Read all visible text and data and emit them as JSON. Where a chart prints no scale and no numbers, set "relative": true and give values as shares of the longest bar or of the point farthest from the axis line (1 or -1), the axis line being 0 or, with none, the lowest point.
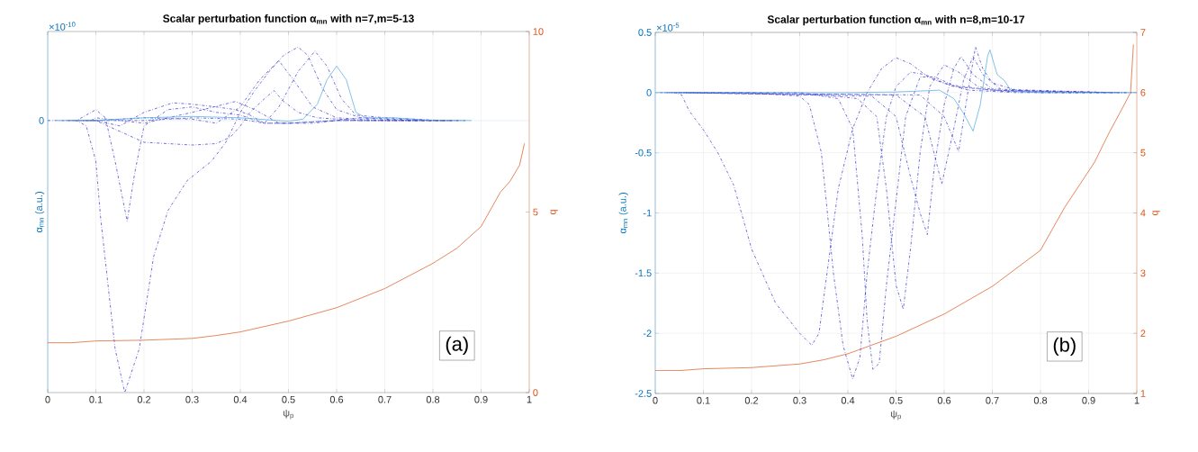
{
  "chart_data": [
    {
      "type": "line",
      "title": "Scalar perturbation function α$_{mn}$ with n=7,m=5-13",
      "xlabel": "ψ$_{p}$",
      "ylabel": "α$_{mn}$ (a.u.)",
      "relative": true,
      "grid": "x",
      "xlim": [
        0,
        1
      ],
      "xticks": [
        0,
        0.1,
        0.2,
        0.3,
        0.4,
        0.5,
        0.6,
        0.7,
        0.8,
        0.9,
        1
      ],
      "ref_lines": [
        {
          "axis": "y",
          "value": 0,
          "label": "0",
          "color": "#bfe0ef"
        }
      ],
      "annotations": [
        "×10$^{-10}$",
        "(a)"
      ],
      "series": [
        {
          "color": "#3333cc",
          "line_style": "dashdot",
          "x": [
            0,
            0.06,
            0.08,
            0.1,
            0.11,
            0.14,
            0.16,
            0.19,
            0.22,
            0.25,
            0.29,
            0.34,
            0.37,
            0.4,
            0.43,
            0.46,
            0.49,
            0.52,
            0.54,
            0.57,
            0.6,
            0.65,
            0.75,
            0.87
          ],
          "values": [
            0,
            0,
            -0.02,
            -0.15,
            -0.36,
            -0.84,
            -1,
            -0.84,
            -0.5,
            -0.33,
            -0.22,
            -0.15,
            -0.08,
            0.03,
            0.11,
            0.18,
            0.24,
            0.27,
            0.24,
            0.12,
            0.04,
            0.01,
            0,
            0
          ]
        },
        {
          "color": "#3333cc",
          "line_style": "dashdot",
          "x": [
            0.04,
            0.06,
            0.08,
            0.1,
            0.12,
            0.14,
            0.165,
            0.18,
            0.2,
            0.25,
            0.3,
            0.35,
            0.4,
            0.45,
            0.5,
            0.6,
            0.86
          ],
          "values": [
            0,
            0,
            0.02,
            0.04,
            0.01,
            -0.15,
            -0.37,
            -0.2,
            -0.02,
            0.04,
            0.05,
            0.03,
            0.02,
            -0.01,
            -0.01,
            0,
            0
          ]
        },
        {
          "color": "#3333cc",
          "line_style": "dashdot",
          "x": [
            0.05,
            0.1,
            0.15,
            0.2,
            0.3,
            0.35,
            0.38,
            0.4,
            0.42,
            0.45,
            0.47,
            0.49,
            0.52,
            0.56,
            0.65,
            0.85
          ],
          "values": [
            0,
            0,
            -0.04,
            -0.08,
            -0.09,
            -0.085,
            -0.06,
            -0.02,
            0.03,
            0.08,
            0.11,
            0.07,
            0.03,
            0.01,
            0,
            0
          ]
        },
        {
          "color": "#3333cc",
          "line_style": "dashdot",
          "x": [
            0.06,
            0.1,
            0.15,
            0.2,
            0.26,
            0.3,
            0.35,
            0.39,
            0.42,
            0.45,
            0.5,
            0.6,
            0.84
          ],
          "values": [
            0,
            0,
            -0.02,
            0.03,
            0.065,
            0.06,
            0.05,
            0.04,
            0.02,
            -0.01,
            -0.01,
            0,
            0
          ]
        },
        {
          "color": "#3333cc",
          "line_style": "dashdot",
          "x": [
            0.07,
            0.1,
            0.2,
            0.3,
            0.35,
            0.4,
            0.44,
            0.48,
            0.51,
            0.55,
            0.6,
            0.7,
            0.83
          ],
          "values": [
            0,
            0,
            0.01,
            0.005,
            -0.01,
            0.05,
            0.15,
            0.22,
            0.15,
            0.05,
            0.01,
            0,
            0
          ]
        },
        {
          "color": "#3333cc",
          "line_style": "dashdot",
          "x": [
            0.08,
            0.1,
            0.2,
            0.3,
            0.4,
            0.45,
            0.48,
            0.52,
            0.555,
            0.58,
            0.61,
            0.64,
            0.7,
            0.82
          ],
          "values": [
            0,
            0,
            0,
            0.01,
            0.005,
            -0.01,
            0.05,
            0.18,
            0.255,
            0.2,
            0.08,
            0.02,
            0.01,
            0
          ]
        },
        {
          "color": "#3333cc",
          "line_style": "dashdot",
          "x": [
            0.09,
            0.1,
            0.2,
            0.3,
            0.39,
            0.43,
            0.48,
            0.55,
            0.65,
            0.8
          ],
          "values": [
            0,
            0.01,
            -0.01,
            0.03,
            0.07,
            0.04,
            -0.01,
            -0.01,
            0.01,
            0
          ]
        },
        {
          "color": "#4da6dc",
          "line_style": "solid",
          "x": [
            0.02,
            0.1,
            0.2,
            0.3,
            0.4,
            0.5,
            0.53,
            0.56,
            0.58,
            0.6,
            0.62,
            0.64,
            0.66,
            0.72,
            0.8,
            0.88
          ],
          "values": [
            0,
            0,
            0.01,
            0.015,
            0.01,
            -0.003,
            0.005,
            0.06,
            0.15,
            0.2,
            0.15,
            0.03,
            0.01,
            0.01,
            0,
            0
          ]
        }
      ]
    },
    {
      "type": "line",
      "ylabel": "q",
      "tick_labels": "y",
      "xlim": [
        0,
        1
      ],
      "ylim": [
        0,
        10
      ],
      "yticks": [
        0,
        5,
        10
      ],
      "series": [
        {
          "color": "#d95319",
          "line_style": "solid",
          "x": [
            0,
            0.05,
            0.1,
            0.2,
            0.3,
            0.35,
            0.4,
            0.5,
            0.6,
            0.7,
            0.8,
            0.85,
            0.9,
            0.94,
            0.96,
            0.98,
            0.99
          ],
          "values": [
            1.38,
            1.38,
            1.43,
            1.45,
            1.5,
            1.58,
            1.68,
            1.98,
            2.35,
            2.88,
            3.58,
            4.0,
            4.6,
            5.55,
            5.85,
            6.3,
            6.9
          ]
        }
      ]
    },
    {
      "type": "line",
      "title": "Scalar perturbation function α$_{mn}$  with n=8,m=10-17",
      "xlabel": "ψ$_{p}$",
      "ylabel": "α$_{mn}$ (a.u.)",
      "y2label": "q",
      "grid": true,
      "xlim": [
        0,
        1
      ],
      "xticks": [
        0,
        0.1,
        0.2,
        0.3,
        0.4,
        0.5,
        0.6,
        0.7,
        0.8,
        0.9,
        1
      ],
      "ylim": [
        -2.5,
        0.5
      ],
      "yticks": [
        -2.5,
        -2,
        -1.5,
        -1,
        -0.5,
        0,
        0.5
      ],
      "y2lim": [
        1,
        7
      ],
      "y2ticks": [
        1,
        2,
        3,
        4,
        5,
        6,
        7
      ],
      "annotations": [
        "×10$^{-5}$",
        "(b)"
      ],
      "series": [
        {
          "color": "#3333cc",
          "line_style": "dashdot",
          "x": [
            0.01,
            0.04,
            0.055,
            0.07,
            0.1,
            0.13,
            0.163,
            0.2,
            0.25,
            0.3,
            0.325,
            0.34,
            0.36,
            0.38,
            0.41,
            0.44,
            0.47,
            0.5,
            0.53,
            0.57,
            0.62,
            0.7,
            0.8,
            0.99
          ],
          "values": [
            0,
            0,
            -0.02,
            -0.15,
            -0.31,
            -0.5,
            -0.77,
            -1.3,
            -1.75,
            -2.0,
            -2.1,
            -2.0,
            -1.4,
            -0.8,
            -0.3,
            0,
            0.2,
            0.29,
            0.24,
            0.12,
            0.05,
            0.02,
            0,
            0
          ]
        },
        {
          "color": "#3333cc",
          "line_style": "dashdot",
          "x": [
            0.02,
            0.2,
            0.3,
            0.32,
            0.345,
            0.37,
            0.39,
            0.41,
            0.425,
            0.44,
            0.46,
            0.48,
            0.5,
            0.53,
            0.56,
            0.6,
            0.65,
            0.75,
            0.98
          ],
          "values": [
            0,
            0,
            -0.03,
            -0.1,
            -0.5,
            -1.5,
            -2.1,
            -2.38,
            -2.2,
            -1.5,
            -0.8,
            -0.2,
            0.05,
            0.17,
            0.15,
            0.08,
            0.02,
            0,
            0
          ]
        },
        {
          "color": "#3333cc",
          "line_style": "dashdot",
          "x": [
            0.03,
            0.3,
            0.38,
            0.41,
            0.43,
            0.44,
            0.452,
            0.465,
            0.48,
            0.5,
            0.52,
            0.55,
            0.58,
            0.62,
            0.7,
            0.97
          ],
          "values": [
            0,
            0,
            -0.05,
            -0.3,
            -1.2,
            -1.9,
            -2.3,
            -2.25,
            -1.6,
            -0.9,
            -0.2,
            0.13,
            0.13,
            0.06,
            0.02,
            0
          ]
        },
        {
          "color": "#3333cc",
          "line_style": "dashdot",
          "x": [
            0.04,
            0.35,
            0.42,
            0.46,
            0.48,
            0.5,
            0.515,
            0.53,
            0.55,
            0.57,
            0.6,
            0.63,
            0.67,
            0.72,
            0.96
          ],
          "values": [
            0,
            -0.02,
            -0.05,
            -0.2,
            -0.8,
            -1.6,
            -1.8,
            -1.3,
            -0.5,
            0.05,
            0.23,
            0.17,
            0.05,
            0.01,
            0
          ]
        },
        {
          "color": "#3333cc",
          "line_style": "dashdot",
          "x": [
            0.05,
            0.45,
            0.5,
            0.53,
            0.55,
            0.565,
            0.58,
            0.6,
            0.62,
            0.635,
            0.66,
            0.7,
            0.95
          ],
          "values": [
            0,
            -0.03,
            -0.2,
            -0.7,
            -1.0,
            -1.18,
            -0.6,
            -0.1,
            0.2,
            0.3,
            0.15,
            0.03,
            0
          ]
        },
        {
          "color": "#3333cc",
          "line_style": "dashdot",
          "x": [
            0.06,
            0.5,
            0.56,
            0.595,
            0.62,
            0.64,
            0.66,
            0.68,
            0.72,
            0.94
          ],
          "values": [
            0,
            -0.02,
            -0.2,
            -0.76,
            -0.3,
            0.1,
            0.3,
            0.15,
            0.02,
            0
          ]
        },
        {
          "color": "#3333cc",
          "line_style": "dashdot",
          "x": [
            0.07,
            0.55,
            0.6,
            0.63,
            0.645,
            0.665,
            0.68,
            0.7,
            0.75,
            0.85,
            0.93
          ],
          "values": [
            0,
            -0.02,
            -0.2,
            -0.49,
            -0.1,
            0.38,
            0.2,
            0.08,
            0.02,
            0,
            0
          ]
        },
        {
          "color": "#4da6dc",
          "line_style": "solid",
          "x": [
            0,
            0.4,
            0.5,
            0.59,
            0.62,
            0.64,
            0.66,
            0.675,
            0.69,
            0.695,
            0.71,
            0.725,
            0.74,
            0.8,
            1
          ],
          "values": [
            0,
            0,
            0.005,
            0.02,
            -0.05,
            -0.17,
            -0.32,
            -0.1,
            0.3,
            0.355,
            0.15,
            0.1,
            0.01,
            0,
            0
          ]
        },
        {
          "color": "#d95319",
          "line_style": "solid",
          "axis": "y2",
          "x": [
            0,
            0.05,
            0.1,
            0.2,
            0.3,
            0.35,
            0.4,
            0.5,
            0.6,
            0.7,
            0.8,
            0.85,
            0.912,
            0.943,
            0.968,
            0.987,
            0.993
          ],
          "values": [
            1.38,
            1.38,
            1.41,
            1.43,
            1.49,
            1.56,
            1.66,
            1.95,
            2.32,
            2.78,
            3.38,
            4.09,
            4.84,
            5.34,
            5.71,
            6.0,
            6.8
          ]
        }
      ]
    }
  ]
}
